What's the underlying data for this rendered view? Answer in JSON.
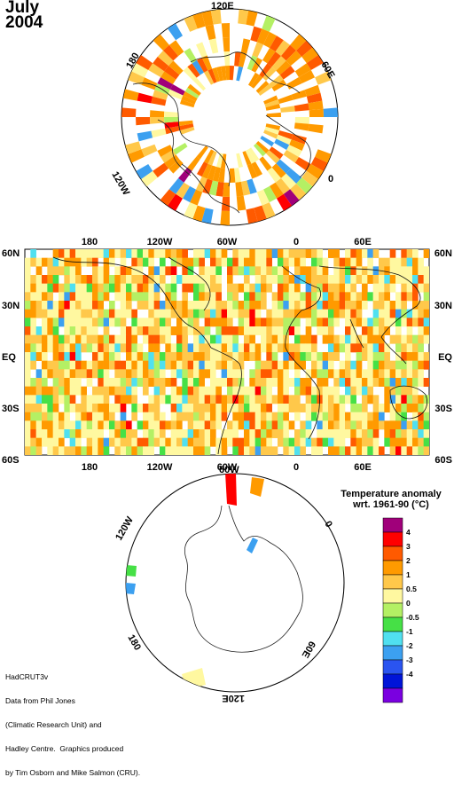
{
  "title": {
    "month": "July",
    "year": "2004"
  },
  "north_polar": {
    "lon_labels": {
      "top": "120E",
      "right_upper": "60E",
      "right_lower": "0",
      "left_upper": "180",
      "left_lower": "120W"
    }
  },
  "world": {
    "lon_labels": [
      "180",
      "120W",
      "60W",
      "0",
      "60E"
    ],
    "lat_labels": [
      "60N",
      "30N",
      "EQ",
      "30S",
      "60S"
    ]
  },
  "south_polar": {
    "lon_labels": {
      "top": "60W",
      "right_upper": "0",
      "right_lower": "60E",
      "left_upper": "120W",
      "left_lower": "180",
      "bottom": "120E"
    }
  },
  "legend": {
    "title_line1": "Temperature anomaly",
    "title_line2": "wrt. 1961-90  (°C)",
    "ticks": [
      "4",
      "3",
      "2",
      "1",
      "0.5",
      "0",
      "-0.5",
      "-1",
      "-2",
      "-3",
      "-4"
    ],
    "colors": [
      "#a0007a",
      "#ff0000",
      "#ff5a00",
      "#ff9a00",
      "#ffc84a",
      "#fff8a0",
      "#b4f064",
      "#46e046",
      "#50e0f0",
      "#3ca0f0",
      "#2a54f0",
      "#0014d8",
      "#7a00e0"
    ]
  },
  "credits": {
    "line1": "HadCRUT3v",
    "line2": "Data from Phil Jones",
    "line3": "(Climatic Research Unit) and",
    "line4": "Hadley Centre.  Graphics produced",
    "line5": "by Tim Osborn and Mike Salmon (CRU)."
  }
}
